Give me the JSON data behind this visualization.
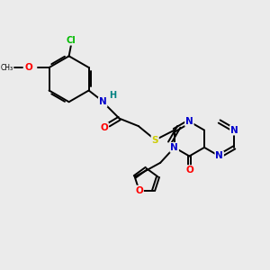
{
  "background_color": "#ebebeb",
  "bond_color": "#000000",
  "atom_colors": {
    "N": "#0000cc",
    "O": "#ff0000",
    "S": "#cccc00",
    "Cl": "#00bb00",
    "H": "#008080",
    "C": "#000000"
  }
}
